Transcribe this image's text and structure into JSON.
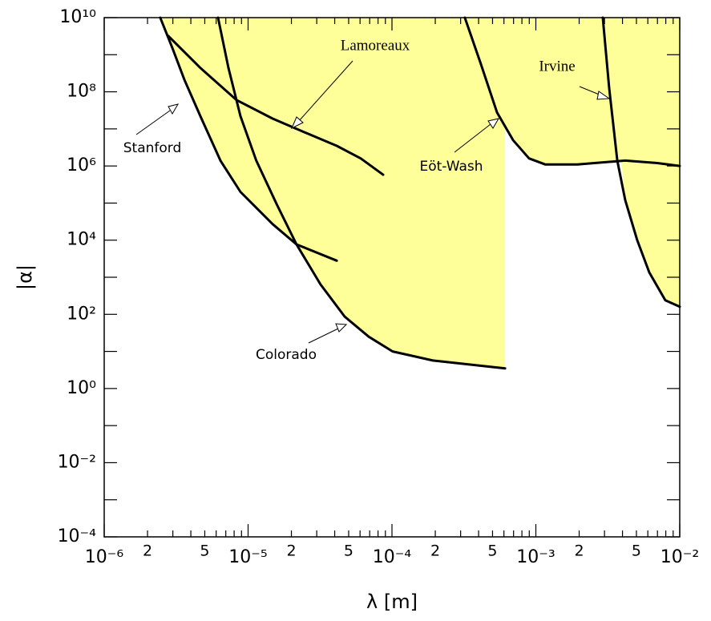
{
  "chart_data": {
    "type": "line",
    "xscale": "log",
    "yscale": "log",
    "xlabel": "λ  [m]",
    "ylabel": "|α|",
    "xlim": [
      1e-06,
      0.01
    ],
    "ylim": [
      0.0001,
      10000000000.0
    ],
    "xticks": [
      {
        "value": 1e-06,
        "label": "10⁻⁶"
      },
      {
        "value": 1e-05,
        "label": "10⁻⁵"
      },
      {
        "value": 0.0001,
        "label": "10⁻⁴"
      },
      {
        "value": 0.001,
        "label": "10⁻³"
      },
      {
        "value": 0.01,
        "label": "10⁻²"
      }
    ],
    "xminorticks": [
      {
        "value": 2e-06,
        "label": "2"
      },
      3e-06,
      4e-06,
      {
        "value": 5e-06,
        "label": "5"
      },
      6e-06,
      7e-06,
      8e-06,
      9e-06,
      {
        "value": 2e-05,
        "label": "2"
      },
      3e-05,
      4e-05,
      {
        "value": 5e-05,
        "label": "5"
      },
      6e-05,
      7e-05,
      8e-05,
      9e-05,
      {
        "value": 0.0002,
        "label": "2"
      },
      0.0003,
      0.0004,
      {
        "value": 0.0005,
        "label": "5"
      },
      0.0006,
      0.0007,
      0.0008,
      0.0009,
      {
        "value": 0.002,
        "label": "2"
      },
      0.003,
      0.004,
      {
        "value": 0.005,
        "label": "5"
      },
      0.006,
      0.007,
      0.008,
      0.009
    ],
    "yticks": [
      {
        "value": 0.0001,
        "label": "10⁻⁴"
      },
      {
        "value": 0.01,
        "label": "10⁻²"
      },
      {
        "value": 1,
        "label": "10⁰"
      },
      {
        "value": 100,
        "label": "10²"
      },
      {
        "value": 10000,
        "label": "10⁴"
      },
      {
        "value": 1000000,
        "label": "10⁶"
      },
      {
        "value": 100000000,
        "label": "10⁸"
      },
      {
        "value": 10000000000,
        "label": "10¹⁰"
      }
    ],
    "yminorticks": [
      0.001,
      0.1,
      10,
      1000,
      100000,
      10000000,
      1000000000
    ],
    "annotations": [
      "Lamoreaux",
      "Stanford",
      "Eöt-Wash",
      "Irvine",
      "Colorado"
    ],
    "fills": [
      {
        "color": "#ffff99",
        "x": [
          2.45e-06,
          2.98e-06,
          3.61e-06,
          4.66e-06,
          6.42e-06,
          8.85e-06,
          1.48e-05,
          2.17e-05,
          3.19e-05,
          4.69e-05,
          6.89e-05,
          0.000101,
          0.000192,
          0.000611,
          0.000611
        ],
        "values": [
          10000000000.0,
          1500000000.0,
          210000000.0,
          22000000.0,
          1400000.0,
          200000.0,
          27000.0,
          7700.0,
          640,
          87,
          25,
          10,
          5.7,
          3.5,
          10000000000.0
        ]
      },
      {
        "color": "#ffff99",
        "x": [
          0.000321,
          0.000415,
          0.000537,
          0.000694,
          0.000897,
          0.00116,
          0.00194,
          0.00392,
          0.00418,
          0.00507,
          0.00614,
          0.00794,
          0.01,
          0.01
        ],
        "values": [
          10000000000.0,
          560000000.0,
          28000000.0,
          5000000.0,
          1600000.0,
          1100000.0,
          1100000.0,
          1300000.0,
          120000.0,
          9900.0,
          1350,
          240,
          160,
          10000000000.0
        ]
      }
    ],
    "series": [
      {
        "color": "#000000",
        "x": [
          2.79e-06,
          4.66e-06,
          8.3e-06,
          1.48e-05,
          2.47e-05,
          4.13e-05,
          6.06e-05,
          8.68e-05
        ],
        "values": [
          3200000000.0,
          440000000.0,
          60000000.0,
          19000000.0,
          8100000.0,
          3500000.0,
          1600000.0,
          580000.0
        ]
      },
      {
        "color": "#000000",
        "x": [
          2.45e-06,
          2.98e-06,
          3.61e-06,
          4.66e-06,
          6.42e-06,
          8.85e-06,
          1.48e-05,
          2.17e-05,
          4.13e-05
        ],
        "values": [
          10000000000.0,
          1500000000.0,
          210000000.0,
          22000000.0,
          1400000.0,
          200000.0,
          27000.0,
          7700.0,
          2800.0
        ]
      },
      {
        "color": "#000000",
        "x": [
          6.18e-06,
          7.3e-06,
          8.85e-06,
          1.14e-05,
          1.58e-05,
          2.17e-05,
          3.19e-05,
          4.69e-05,
          6.89e-05,
          0.000101,
          0.000192,
          0.000611
        ],
        "values": [
          10000000000.0,
          440000000.0,
          22000000.0,
          1400000.0,
          93000.0,
          7700.0,
          640,
          87,
          25,
          10,
          5.7,
          3.5
        ]
      },
      {
        "color": "#000000",
        "x": [
          0.000321,
          0.000415,
          0.000537,
          0.000694,
          0.000897,
          0.00116,
          0.00194,
          0.00418,
          0.00698,
          0.01
        ],
        "values": [
          10000000000.0,
          560000000.0,
          28000000.0,
          5000000.0,
          1600000.0,
          1100000.0,
          1100000.0,
          1400000.0,
          1200000.0,
          1000000.0
        ]
      },
      {
        "color": "#000000",
        "x": [
          0.00292,
          0.00323,
          0.00368,
          0.00418,
          0.00507,
          0.00614,
          0.00794,
          0.01
        ],
        "values": [
          10000000000.0,
          130000000.0,
          1400000.0,
          120000.0,
          9900.0,
          1350,
          240,
          160
        ]
      }
    ]
  }
}
